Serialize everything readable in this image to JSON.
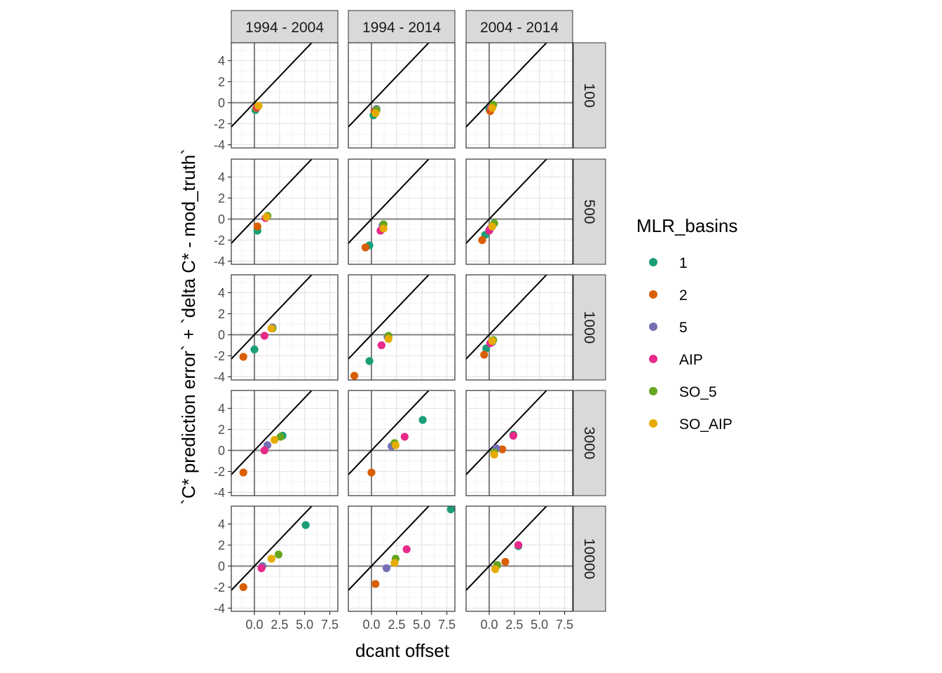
{
  "chart_data": {
    "type": "scatter",
    "facet_type": "grid",
    "columns": [
      "1994 - 2004",
      "1994 - 2014",
      "2004 - 2014"
    ],
    "rows": [
      "100",
      "500",
      "1000",
      "3000",
      "10000"
    ],
    "xlabel": "dcant offset",
    "ylabel": "`C* prediction error` + `delta C* - mod_truth`",
    "xlim": [
      -2.3,
      8.3
    ],
    "ylim": [
      -4.3,
      5.7
    ],
    "x_ticks": [
      0.0,
      2.5,
      5.0,
      7.5
    ],
    "x_tick_labels": [
      "0.0",
      "2.5",
      "5.0",
      "7.5"
    ],
    "y_ticks": [
      -4,
      -2,
      0,
      2,
      4
    ],
    "y_tick_labels": [
      "-4",
      "-2",
      "0",
      "2",
      "4"
    ],
    "reference_lines": {
      "identity": "y = x",
      "hline": 0,
      "vline": 0
    },
    "grid": true,
    "legend": {
      "title": "MLR_basins",
      "position": "right",
      "entries": [
        {
          "name": "1",
          "color": "#1B9E77"
        },
        {
          "name": "2",
          "color": "#D95F02"
        },
        {
          "name": "5",
          "color": "#7570B3"
        },
        {
          "name": "AIP",
          "color": "#E7298A"
        },
        {
          "name": "SO_5",
          "color": "#66A61E"
        },
        {
          "name": "SO_AIP",
          "color": "#E6AB02"
        }
      ]
    },
    "panels": [
      {
        "row": "100",
        "col": "1994 - 2004",
        "points": [
          {
            "basin": "1",
            "x": 0.1,
            "y": -0.7
          },
          {
            "basin": "2",
            "x": 0.2,
            "y": -0.5
          },
          {
            "basin": "5",
            "x": 0.3,
            "y": -0.4
          },
          {
            "basin": "AIP",
            "x": 0.3,
            "y": -0.4
          },
          {
            "basin": "SO_5",
            "x": 0.4,
            "y": -0.3
          },
          {
            "basin": "SO_AIP",
            "x": 0.4,
            "y": -0.3
          }
        ]
      },
      {
        "row": "100",
        "col": "1994 - 2014",
        "points": [
          {
            "basin": "1",
            "x": 0.2,
            "y": -1.2
          },
          {
            "basin": "2",
            "x": 0.3,
            "y": -0.8
          },
          {
            "basin": "5",
            "x": 0.5,
            "y": -0.6
          },
          {
            "basin": "AIP",
            "x": 0.4,
            "y": -0.8
          },
          {
            "basin": "SO_5",
            "x": 0.5,
            "y": -0.7
          },
          {
            "basin": "SO_AIP",
            "x": 0.4,
            "y": -1.0
          }
        ]
      },
      {
        "row": "100",
        "col": "2004 - 2014",
        "points": [
          {
            "basin": "1",
            "x": 0.0,
            "y": -0.6
          },
          {
            "basin": "2",
            "x": 0.1,
            "y": -0.8
          },
          {
            "basin": "5",
            "x": 0.2,
            "y": -0.5
          },
          {
            "basin": "AIP",
            "x": 0.2,
            "y": -0.5
          },
          {
            "basin": "SO_5",
            "x": 0.4,
            "y": -0.2
          },
          {
            "basin": "SO_AIP",
            "x": 0.3,
            "y": -0.5
          }
        ]
      },
      {
        "row": "500",
        "col": "1994 - 2004",
        "points": [
          {
            "basin": "1",
            "x": 0.3,
            "y": -1.1
          },
          {
            "basin": "2",
            "x": 0.3,
            "y": -0.7
          },
          {
            "basin": "5",
            "x": 1.3,
            "y": 0.3
          },
          {
            "basin": "AIP",
            "x": 1.1,
            "y": 0.1
          },
          {
            "basin": "SO_5",
            "x": 1.3,
            "y": 0.3
          },
          {
            "basin": "SO_AIP",
            "x": 1.2,
            "y": 0.2
          }
        ]
      },
      {
        "row": "500",
        "col": "1994 - 2014",
        "points": [
          {
            "basin": "1",
            "x": -0.2,
            "y": -2.5
          },
          {
            "basin": "2",
            "x": -0.6,
            "y": -2.7
          },
          {
            "basin": "5",
            "x": 1.1,
            "y": -0.6
          },
          {
            "basin": "AIP",
            "x": 0.9,
            "y": -1.1
          },
          {
            "basin": "SO_5",
            "x": 1.2,
            "y": -0.5
          },
          {
            "basin": "SO_AIP",
            "x": 1.2,
            "y": -0.9
          }
        ]
      },
      {
        "row": "500",
        "col": "2004 - 2014",
        "points": [
          {
            "basin": "1",
            "x": -0.4,
            "y": -1.5
          },
          {
            "basin": "2",
            "x": -0.7,
            "y": -2.0
          },
          {
            "basin": "5",
            "x": 0.1,
            "y": -0.9
          },
          {
            "basin": "AIP",
            "x": 0.0,
            "y": -1.1
          },
          {
            "basin": "SO_5",
            "x": 0.5,
            "y": -0.4
          },
          {
            "basin": "SO_AIP",
            "x": 0.3,
            "y": -0.7
          }
        ]
      },
      {
        "row": "1000",
        "col": "1994 - 2004",
        "points": [
          {
            "basin": "1",
            "x": 0.0,
            "y": -1.4
          },
          {
            "basin": "2",
            "x": -1.1,
            "y": -2.1
          },
          {
            "basin": "5",
            "x": 1.8,
            "y": 0.7
          },
          {
            "basin": "AIP",
            "x": 1.0,
            "y": -0.1
          },
          {
            "basin": "SO_5",
            "x": 1.8,
            "y": 0.6
          },
          {
            "basin": "SO_AIP",
            "x": 1.7,
            "y": 0.6
          }
        ]
      },
      {
        "row": "1000",
        "col": "1994 - 2014",
        "points": [
          {
            "basin": "1",
            "x": -0.2,
            "y": -2.5
          },
          {
            "basin": "2",
            "x": -1.7,
            "y": -3.9
          },
          {
            "basin": "5",
            "x": 1.6,
            "y": -0.2
          },
          {
            "basin": "AIP",
            "x": 1.0,
            "y": -1.0
          },
          {
            "basin": "SO_5",
            "x": 1.7,
            "y": -0.1
          },
          {
            "basin": "SO_AIP",
            "x": 1.7,
            "y": -0.4
          }
        ]
      },
      {
        "row": "1000",
        "col": "2004 - 2014",
        "points": [
          {
            "basin": "1",
            "x": -0.3,
            "y": -1.3
          },
          {
            "basin": "2",
            "x": -0.5,
            "y": -1.9
          },
          {
            "basin": "5",
            "x": 0.3,
            "y": -0.7
          },
          {
            "basin": "AIP",
            "x": 0.1,
            "y": -0.8
          },
          {
            "basin": "SO_5",
            "x": 0.4,
            "y": -0.5
          },
          {
            "basin": "SO_AIP",
            "x": 0.3,
            "y": -0.6
          }
        ]
      },
      {
        "row": "3000",
        "col": "1994 - 2004",
        "points": [
          {
            "basin": "1",
            "x": 2.8,
            "y": 1.4
          },
          {
            "basin": "2",
            "x": -1.1,
            "y": -2.1
          },
          {
            "basin": "5",
            "x": 1.3,
            "y": 0.5
          },
          {
            "basin": "AIP",
            "x": 1.0,
            "y": 0.0
          },
          {
            "basin": "SO_5",
            "x": 2.6,
            "y": 1.3
          },
          {
            "basin": "SO_AIP",
            "x": 2.0,
            "y": 1.0
          }
        ]
      },
      {
        "row": "3000",
        "col": "1994 - 2014",
        "points": [
          {
            "basin": "1",
            "x": 5.1,
            "y": 2.9
          },
          {
            "basin": "2",
            "x": 0.0,
            "y": -2.1
          },
          {
            "basin": "5",
            "x": 2.0,
            "y": 0.4
          },
          {
            "basin": "AIP",
            "x": 3.3,
            "y": 1.3
          },
          {
            "basin": "SO_5",
            "x": 2.3,
            "y": 0.7
          },
          {
            "basin": "SO_AIP",
            "x": 2.4,
            "y": 0.5
          }
        ]
      },
      {
        "row": "3000",
        "col": "2004 - 2014",
        "points": [
          {
            "basin": "1",
            "x": 2.4,
            "y": 1.5
          },
          {
            "basin": "2",
            "x": 1.3,
            "y": 0.1
          },
          {
            "basin": "5",
            "x": 0.7,
            "y": 0.2
          },
          {
            "basin": "AIP",
            "x": 2.4,
            "y": 1.4
          },
          {
            "basin": "SO_5",
            "x": 0.5,
            "y": -0.2
          },
          {
            "basin": "SO_AIP",
            "x": 0.5,
            "y": -0.4
          }
        ]
      },
      {
        "row": "10000",
        "col": "1994 - 2004",
        "points": [
          {
            "basin": "1",
            "x": 5.1,
            "y": 3.9
          },
          {
            "basin": "2",
            "x": -1.1,
            "y": -2.0
          },
          {
            "basin": "5",
            "x": 0.8,
            "y": 0.0
          },
          {
            "basin": "AIP",
            "x": 0.7,
            "y": -0.2
          },
          {
            "basin": "SO_5",
            "x": 2.4,
            "y": 1.1
          },
          {
            "basin": "SO_AIP",
            "x": 1.7,
            "y": 0.7
          }
        ]
      },
      {
        "row": "10000",
        "col": "1994 - 2014",
        "points": [
          {
            "basin": "1",
            "x": 7.9,
            "y": 5.4
          },
          {
            "basin": "2",
            "x": 0.4,
            "y": -1.7
          },
          {
            "basin": "5",
            "x": 1.5,
            "y": -0.2
          },
          {
            "basin": "AIP",
            "x": 3.5,
            "y": 1.6
          },
          {
            "basin": "SO_5",
            "x": 2.4,
            "y": 0.7
          },
          {
            "basin": "SO_AIP",
            "x": 2.3,
            "y": 0.3
          }
        ]
      },
      {
        "row": "10000",
        "col": "2004 - 2014",
        "points": [
          {
            "basin": "1",
            "x": 2.9,
            "y": 1.9
          },
          {
            "basin": "2",
            "x": 1.6,
            "y": 0.4
          },
          {
            "basin": "5",
            "x": 0.8,
            "y": 0.1
          },
          {
            "basin": "AIP",
            "x": 2.9,
            "y": 2.0
          },
          {
            "basin": "SO_5",
            "x": 0.8,
            "y": 0.1
          },
          {
            "basin": "SO_AIP",
            "x": 0.6,
            "y": -0.3
          }
        ]
      }
    ]
  }
}
